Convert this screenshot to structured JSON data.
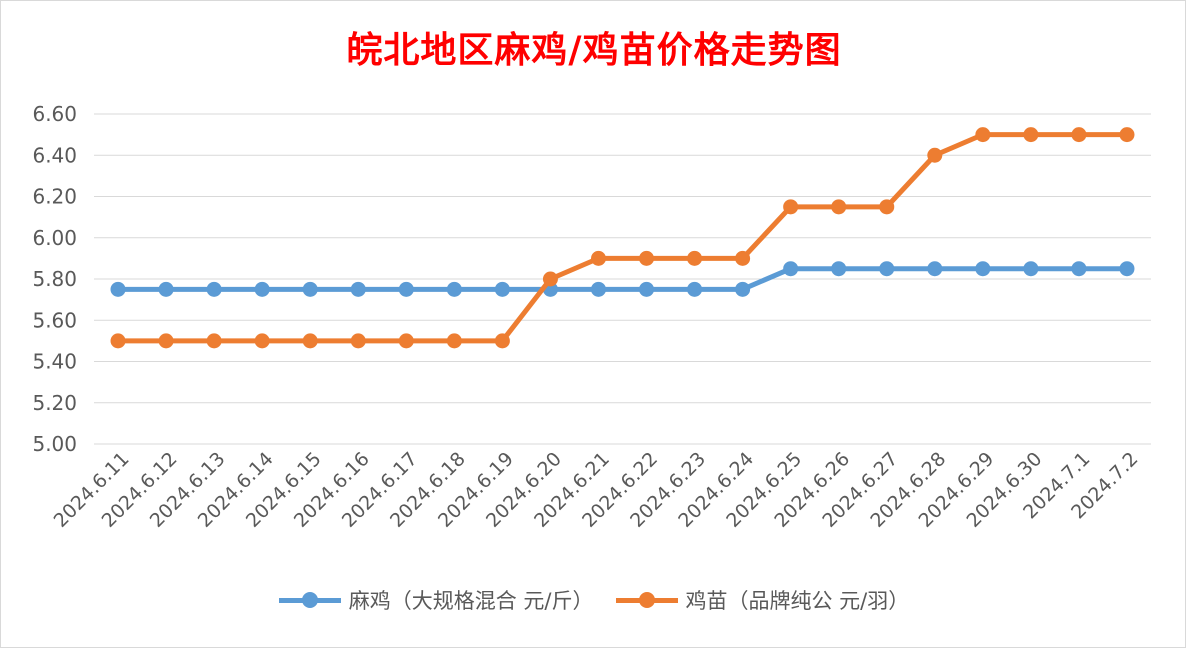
{
  "chart_data": {
    "type": "line",
    "title": "皖北地区麻鸡/鸡苗价格走势图",
    "categories": [
      "2024.6.11",
      "2024.6.12",
      "2024.6.13",
      "2024.6.14",
      "2024.6.15",
      "2024.6.16",
      "2024.6.17",
      "2024.6.18",
      "2024.6.19",
      "2024.6.20",
      "2024.6.21",
      "2024.6.22",
      "2024.6.23",
      "2024.6.24",
      "2024.6.25",
      "2024.6.26",
      "2024.6.27",
      "2024.6.28",
      "2024.6.29",
      "2024.6.30",
      "2024.7.1",
      "2024.7.2"
    ],
    "series": [
      {
        "name": "麻鸡（大规格混合 元/斤）",
        "color": "#5b9bd5",
        "values": [
          5.75,
          5.75,
          5.75,
          5.75,
          5.75,
          5.75,
          5.75,
          5.75,
          5.75,
          5.75,
          5.75,
          5.75,
          5.75,
          5.75,
          5.85,
          5.85,
          5.85,
          5.85,
          5.85,
          5.85,
          5.85,
          5.85
        ]
      },
      {
        "name": "鸡苗（品牌纯公 元/羽）",
        "color": "#ed7d31",
        "values": [
          5.5,
          5.5,
          5.5,
          5.5,
          5.5,
          5.5,
          5.5,
          5.5,
          5.5,
          5.8,
          5.9,
          5.9,
          5.9,
          5.9,
          6.15,
          6.15,
          6.15,
          6.4,
          6.5,
          6.5,
          6.5,
          6.5
        ]
      }
    ],
    "yticks": [
      "5.00",
      "5.20",
      "5.40",
      "5.60",
      "5.80",
      "6.00",
      "6.20",
      "6.40",
      "6.60"
    ],
    "ylim": [
      5.0,
      6.6
    ],
    "grid": true,
    "legend_position": "bottom"
  }
}
